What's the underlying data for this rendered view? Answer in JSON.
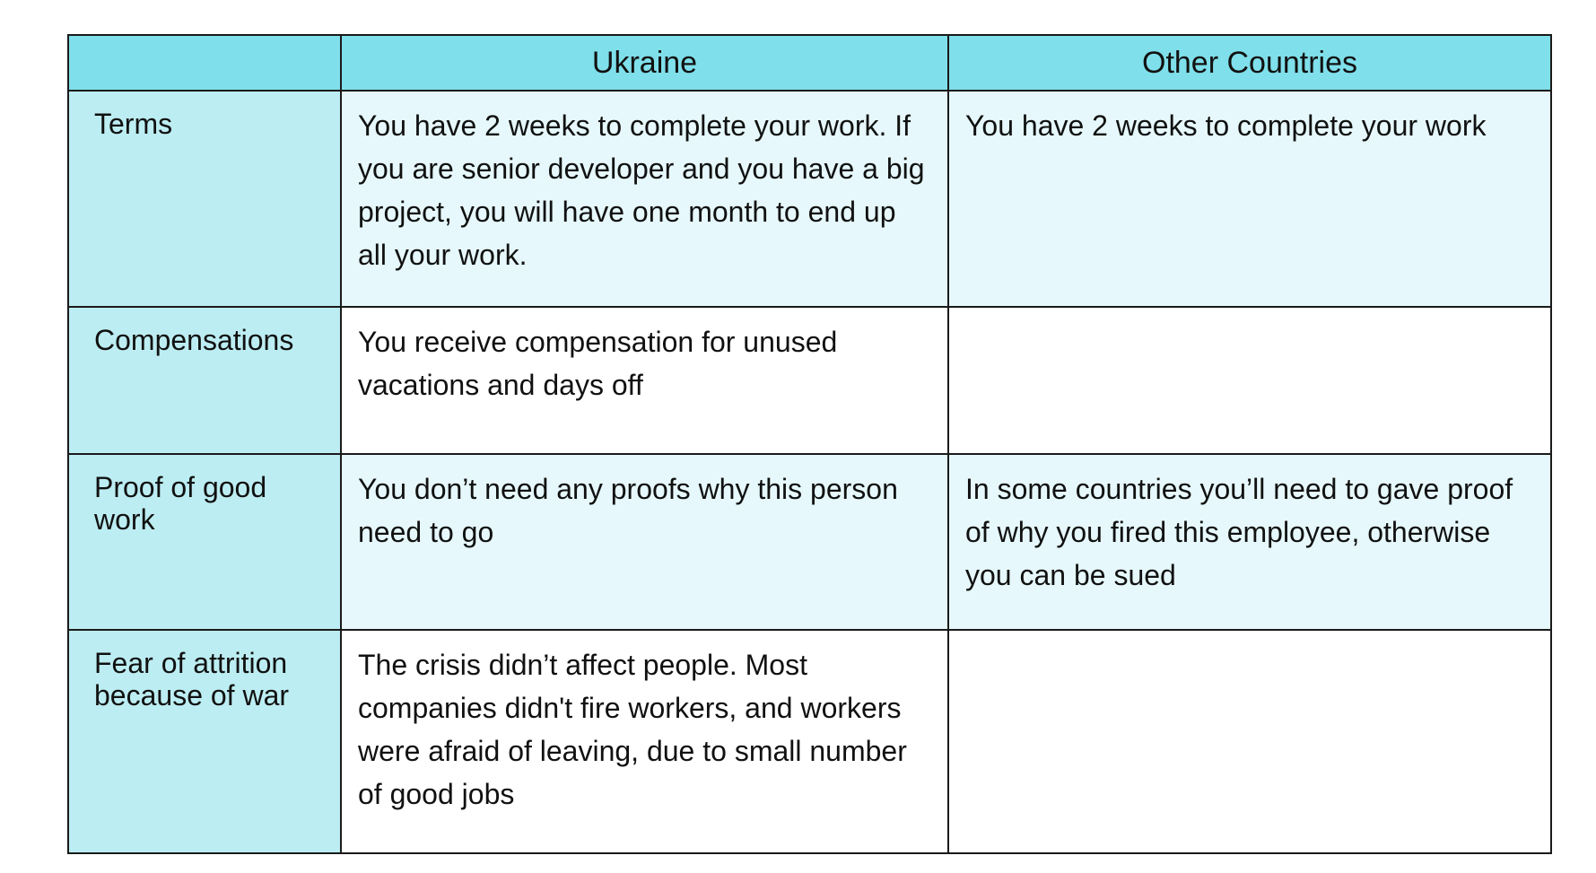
{
  "table": {
    "columns": [
      "",
      "Ukraine",
      "Other Countries"
    ],
    "rows": [
      {
        "label": "Terms",
        "ukraine": "You have 2 weeks to complete your work. If you are senior developer and you have a big project, you will have one month to end up all your work.",
        "other": "You have 2 weeks to complete your work"
      },
      {
        "label": "Compensations",
        "ukraine": "You receive compensation for unused vacations and days off",
        "other": ""
      },
      {
        "label": "Proof of good work",
        "ukraine": "You don’t need any proofs why this person need to go",
        "other": "In some countries you’ll need to gave proof of why you fired this employee, otherwise you can be sued"
      },
      {
        "label": "Fear of attrition because of war",
        "ukraine": "The crisis didn’t affect people. Most companies didn't fire workers, and workers were afraid of leaving, due to small number of good jobs",
        "other": ""
      }
    ]
  },
  "colors": {
    "header_bg": "#7fdfea",
    "rowhead_bg": "#bcedf2",
    "shaded_cell_bg": "#e6f8fb",
    "border": "#1a1a1a"
  }
}
